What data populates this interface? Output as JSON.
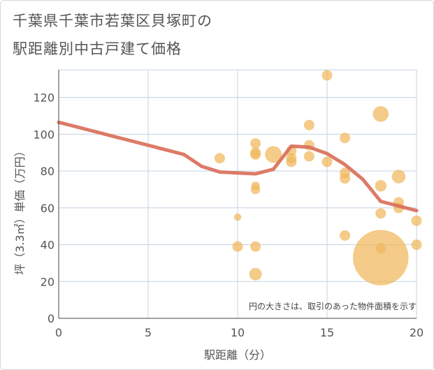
{
  "title": [
    "千葉県千葉市若葉区貝塚町の",
    "駅距離別中古戸建て価格"
  ],
  "chart_data": {
    "type": "scatter",
    "xlabel": "駅距離（分）",
    "ylabel": "坪（3.3㎡）単価（万円）",
    "xlim": [
      0,
      20
    ],
    "ylim": [
      0,
      135
    ],
    "xticks": [
      0,
      5,
      10,
      15,
      20
    ],
    "yticks": [
      0,
      20,
      40,
      60,
      80,
      100,
      120
    ],
    "grid": true,
    "annotation": "円の大きさは、取引のあった物件面積を示す",
    "colors": {
      "points": "#f0b75c",
      "trend": "#d9705a",
      "grid": "#c5d3e0"
    },
    "points": [
      {
        "x": 9,
        "y": 87,
        "size": 1
      },
      {
        "x": 10,
        "y": 55,
        "size": 0.7
      },
      {
        "x": 10,
        "y": 39,
        "size": 1
      },
      {
        "x": 11,
        "y": 95,
        "size": 1
      },
      {
        "x": 11,
        "y": 90,
        "size": 1
      },
      {
        "x": 11,
        "y": 89,
        "size": 1
      },
      {
        "x": 11,
        "y": 72,
        "size": 0.8
      },
      {
        "x": 11,
        "y": 70,
        "size": 0.9
      },
      {
        "x": 11,
        "y": 39,
        "size": 1
      },
      {
        "x": 11,
        "y": 24,
        "size": 1.2
      },
      {
        "x": 12,
        "y": 89,
        "size": 1.6
      },
      {
        "x": 13,
        "y": 91,
        "size": 1
      },
      {
        "x": 13,
        "y": 87,
        "size": 1
      },
      {
        "x": 13,
        "y": 85,
        "size": 1
      },
      {
        "x": 14,
        "y": 105,
        "size": 1
      },
      {
        "x": 14,
        "y": 94,
        "size": 1
      },
      {
        "x": 14,
        "y": 88,
        "size": 1
      },
      {
        "x": 15,
        "y": 132,
        "size": 1
      },
      {
        "x": 15,
        "y": 85,
        "size": 1
      },
      {
        "x": 16,
        "y": 98,
        "size": 1
      },
      {
        "x": 16,
        "y": 79,
        "size": 1
      },
      {
        "x": 16,
        "y": 76,
        "size": 1
      },
      {
        "x": 16,
        "y": 45,
        "size": 1
      },
      {
        "x": 18,
        "y": 111,
        "size": 1.5
      },
      {
        "x": 18,
        "y": 72,
        "size": 1.1
      },
      {
        "x": 18,
        "y": 57,
        "size": 1
      },
      {
        "x": 18,
        "y": 38,
        "size": 1
      },
      {
        "x": 18,
        "y": 33,
        "size": 5.3
      },
      {
        "x": 19,
        "y": 77,
        "size": 1.3
      },
      {
        "x": 19,
        "y": 63,
        "size": 1
      },
      {
        "x": 19,
        "y": 60,
        "size": 1
      },
      {
        "x": 20,
        "y": 53,
        "size": 1
      },
      {
        "x": 20,
        "y": 40,
        "size": 1
      }
    ],
    "trend": {
      "x": [
        0,
        1,
        2,
        3,
        4,
        5,
        6,
        7,
        8,
        9,
        10,
        11,
        12,
        13,
        14,
        15,
        16,
        17,
        18,
        19,
        20
      ],
      "y": [
        106.5,
        104,
        101.5,
        99,
        96.5,
        94,
        91.5,
        89,
        82.5,
        79.5,
        79,
        78.5,
        81,
        93.5,
        93,
        89.5,
        83.5,
        75.5,
        63.5,
        61,
        58.5
      ]
    }
  }
}
